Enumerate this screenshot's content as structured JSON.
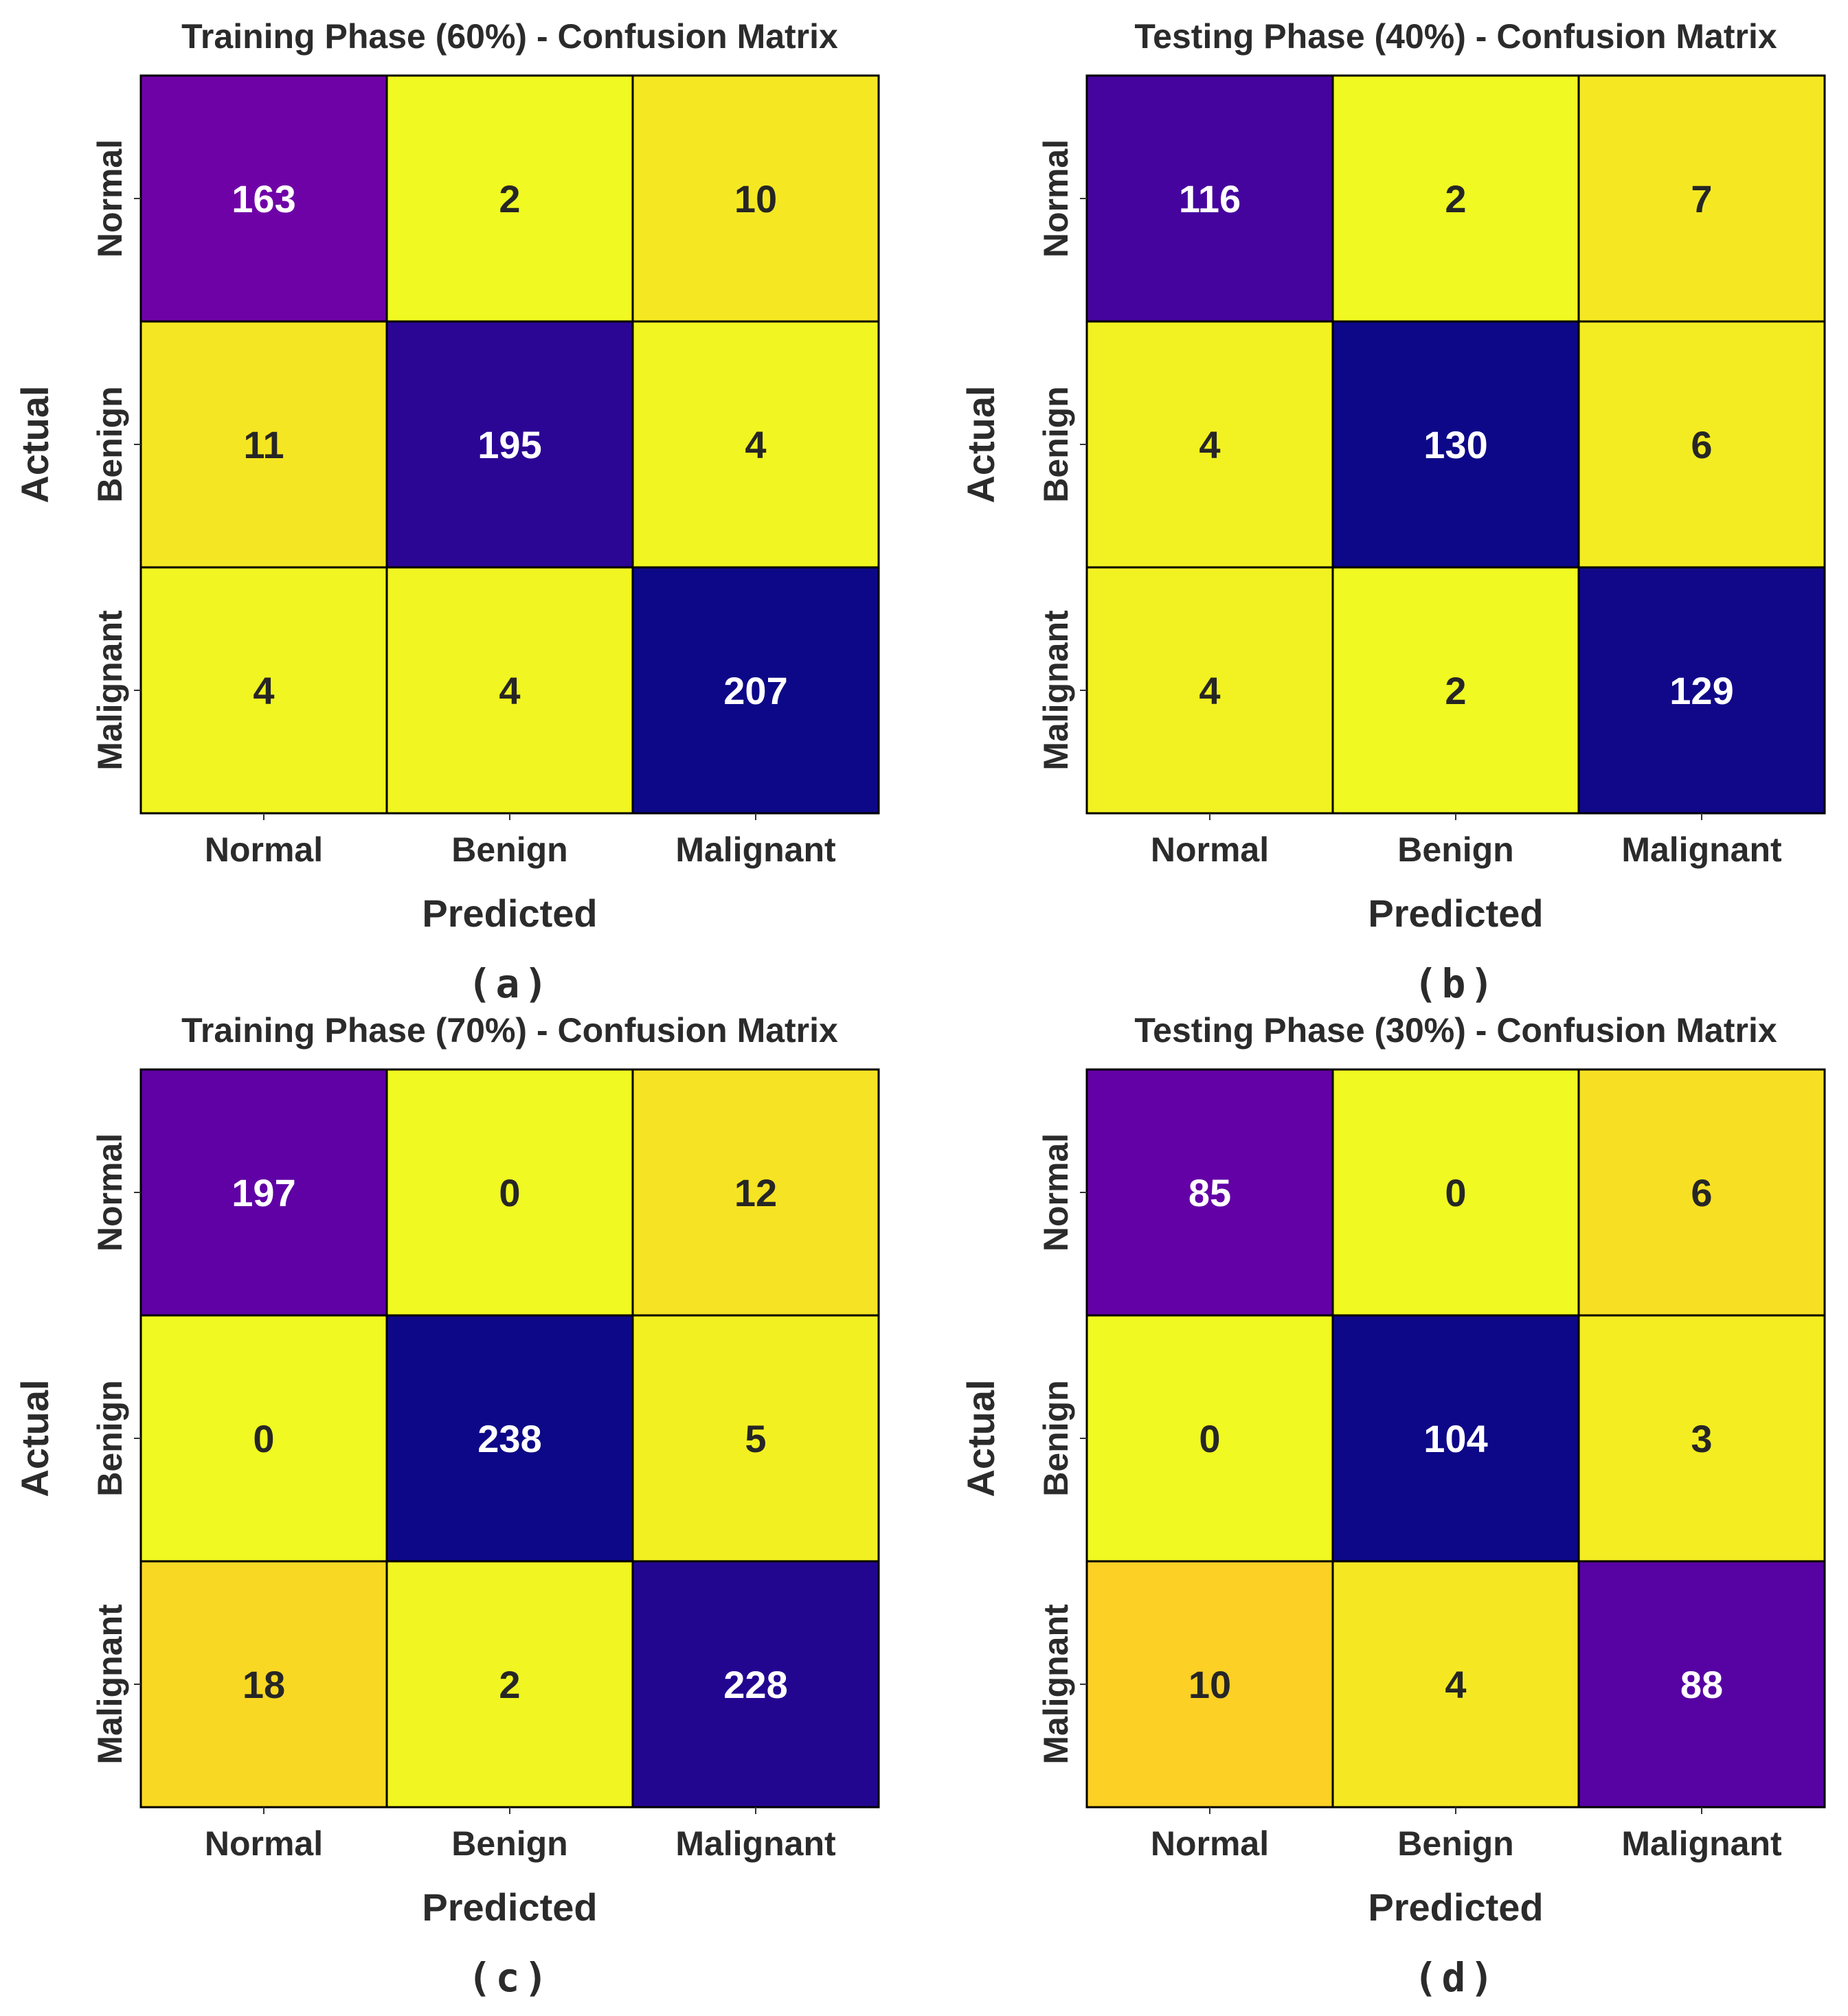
{
  "chart_data": [
    {
      "type": "heatmap",
      "caption": "(a)",
      "title": "Training Phase (60%) - Confusion Matrix",
      "xlabel": "Predicted",
      "ylabel": "Actual",
      "x_categories": [
        "Normal",
        "Benign",
        "Malignant"
      ],
      "y_categories": [
        "Normal",
        "Benign",
        "Malignant"
      ],
      "values": [
        [
          163,
          2,
          10
        ],
        [
          11,
          195,
          4
        ],
        [
          4,
          4,
          207
        ]
      ],
      "colormap": "plasma_r"
    },
    {
      "type": "heatmap",
      "caption": "(b)",
      "title": "Testing Phase (40%) - Confusion Matrix",
      "xlabel": "Predicted",
      "ylabel": "Actual",
      "x_categories": [
        "Normal",
        "Benign",
        "Malignant"
      ],
      "y_categories": [
        "Normal",
        "Benign",
        "Malignant"
      ],
      "values": [
        [
          116,
          2,
          7
        ],
        [
          4,
          130,
          6
        ],
        [
          4,
          2,
          129
        ]
      ],
      "colormap": "plasma_r"
    },
    {
      "type": "heatmap",
      "caption": "(c)",
      "title": "Training Phase (70%) - Confusion Matrix",
      "xlabel": "Predicted",
      "ylabel": "Actual",
      "x_categories": [
        "Normal",
        "Benign",
        "Malignant"
      ],
      "y_categories": [
        "Normal",
        "Benign",
        "Malignant"
      ],
      "values": [
        [
          197,
          0,
          12
        ],
        [
          0,
          238,
          5
        ],
        [
          18,
          2,
          228
        ]
      ],
      "colormap": "plasma_r"
    },
    {
      "type": "heatmap",
      "caption": "(d)",
      "title": "Testing Phase (30%) - Confusion Matrix",
      "xlabel": "Predicted",
      "ylabel": "Actual",
      "x_categories": [
        "Normal",
        "Benign",
        "Malignant"
      ],
      "y_categories": [
        "Normal",
        "Benign",
        "Malignant"
      ],
      "values": [
        [
          85,
          0,
          6
        ],
        [
          0,
          104,
          3
        ],
        [
          10,
          4,
          88
        ]
      ],
      "colormap": "plasma_r"
    }
  ],
  "colors": {
    "high": "#0d0887",
    "mid": "#7e03a8",
    "low": "#f0f921",
    "text_light": "#ffffff",
    "text_dark": "#262626",
    "cell_border": "#000000"
  }
}
